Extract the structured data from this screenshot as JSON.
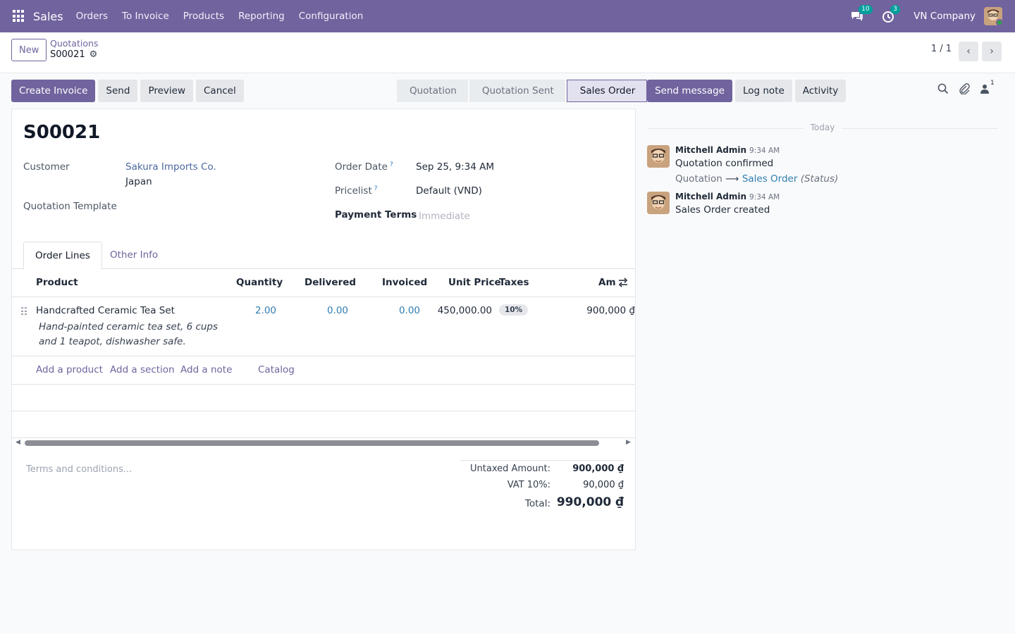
{
  "topbar": {
    "app_name": "Sales",
    "menu": [
      "Orders",
      "To Invoice",
      "Products",
      "Reporting",
      "Configuration"
    ],
    "messages_badge": "10",
    "activities_badge": "3",
    "company": "VN Company",
    "icons": [
      "apps-grid-icon",
      "chat-bubbles-icon",
      "clock-icon"
    ]
  },
  "controlbar": {
    "new_label": "New",
    "breadcrumb_parent": "Quotations",
    "breadcrumb_current": "S00021",
    "pager": "1 / 1"
  },
  "actions": {
    "create_invoice": "Create Invoice",
    "send": "Send",
    "preview": "Preview",
    "cancel": "Cancel"
  },
  "status": {
    "stages": [
      "Quotation",
      "Quotation Sent",
      "Sales Order"
    ],
    "active": "Sales Order"
  },
  "form": {
    "name": "S00021",
    "customer_label": "Customer",
    "customer_name": "Sakura Imports Co.",
    "customer_country": "Japan",
    "template_label": "Quotation Template",
    "order_date_label": "Order Date",
    "order_date": "Sep 25, 9:34 AM",
    "pricelist_label": "Pricelist",
    "pricelist": "Default (VND)",
    "payment_terms_label": "Payment Terms",
    "payment_terms_placeholder": "Immediate",
    "help_mark": "?"
  },
  "tabs": [
    "Order Lines",
    "Other Info"
  ],
  "lines": {
    "headers": {
      "product": "Product",
      "quantity": "Quantity",
      "delivered": "Delivered",
      "invoiced": "Invoiced",
      "unit_price": "Unit Price",
      "taxes": "Taxes",
      "amount": "Am"
    },
    "rows": [
      {
        "product": "Handcrafted Ceramic Tea Set",
        "description": "Hand-painted ceramic tea set, 6 cups and 1 teapot, dishwasher safe.",
        "quantity": "2.00",
        "delivered": "0.00",
        "invoiced": "0.00",
        "unit_price": "450,000.00",
        "tax": "10%",
        "amount": "900,000 ₫"
      }
    ],
    "add_product": "Add a product",
    "add_section": "Add a section",
    "add_note": "Add a note",
    "catalog": "Catalog"
  },
  "terms_placeholder": "Terms and conditions...",
  "totals": {
    "untaxed_label": "Untaxed Amount:",
    "untaxed_value": "900,000 ₫",
    "vat_label": "VAT 10%:",
    "vat_value": "90,000 ₫",
    "total_label": "Total:",
    "total_value": "990,000 ₫"
  },
  "chatter": {
    "send_message": "Send message",
    "log_note": "Log note",
    "activity": "Activity",
    "followers_count": "1",
    "date_separator": "Today",
    "messages": [
      {
        "author": "Mitchell Admin",
        "time": "9:34 AM",
        "body": "Quotation confirmed",
        "tracking_old": "Quotation",
        "tracking_arrow": "⟶",
        "tracking_new": "Sales Order",
        "tracking_field": "(Status)"
      },
      {
        "author": "Mitchell Admin",
        "time": "9:34 AM",
        "body": "Sales Order created"
      }
    ]
  },
  "colors": {
    "brand": "#71639e",
    "link": "#2f7eb0",
    "badge": "#00a09d"
  }
}
